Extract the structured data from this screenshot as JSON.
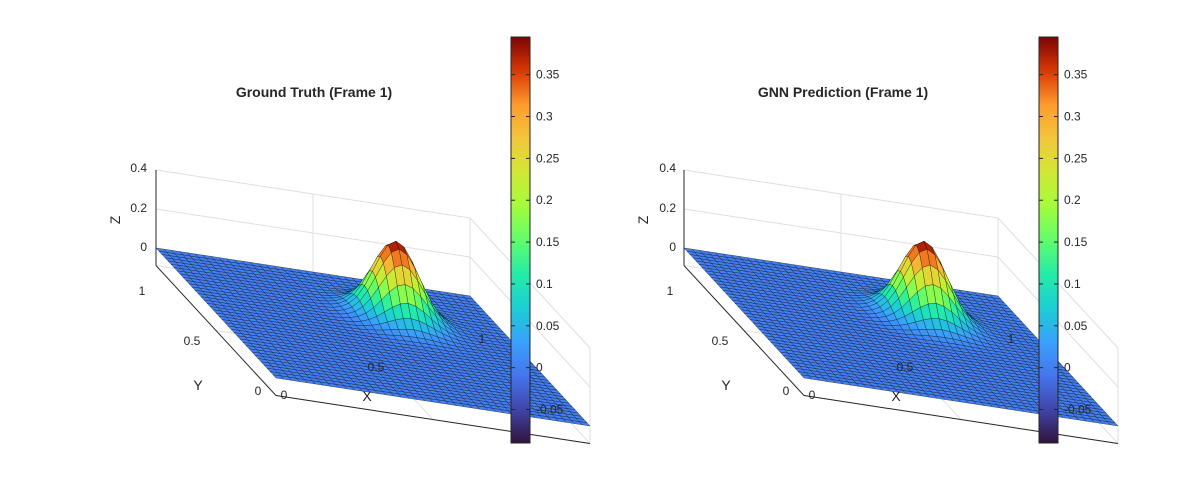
{
  "chart_data": [
    {
      "type": "surface",
      "title": "Ground Truth (Frame 1)",
      "xlabel": "X",
      "ylabel": "Y",
      "zlabel": "Z",
      "xlim": [
        0,
        1
      ],
      "ylim": [
        0,
        1
      ],
      "zlim": [
        -0.09,
        0.4
      ],
      "x_ticks": [
        "0",
        "0.5",
        "1"
      ],
      "y_ticks": [
        "0",
        "0.5",
        "1"
      ],
      "z_ticks": [
        "0",
        "0.2",
        "0.4"
      ],
      "grid": true,
      "colormap": "turbo",
      "grid_resolution": 40,
      "surface": {
        "function": "gaussian",
        "peak": 0.395,
        "center_x": 0.65,
        "center_y": 0.7,
        "sigma": 0.07,
        "baseline": 0
      },
      "colorbar": {
        "min": -0.09,
        "max": 0.395,
        "ticks": [
          "-0.05",
          "0",
          "0.05",
          "0.1",
          "0.15",
          "0.2",
          "0.25",
          "0.3",
          "0.35"
        ],
        "location": "right"
      }
    },
    {
      "type": "surface",
      "title": "GNN Prediction (Frame 1)",
      "xlabel": "X",
      "ylabel": "Y",
      "zlabel": "Z",
      "xlim": [
        0,
        1
      ],
      "ylim": [
        0,
        1
      ],
      "zlim": [
        -0.09,
        0.4
      ],
      "x_ticks": [
        "0",
        "0.5",
        "1"
      ],
      "y_ticks": [
        "0",
        "0.5",
        "1"
      ],
      "z_ticks": [
        "0",
        "0.2",
        "0.4"
      ],
      "grid": true,
      "colormap": "turbo",
      "grid_resolution": 40,
      "surface": {
        "function": "gaussian",
        "peak": 0.395,
        "center_x": 0.65,
        "center_y": 0.7,
        "sigma": 0.07,
        "baseline": 0
      },
      "colorbar": {
        "min": -0.09,
        "max": 0.395,
        "ticks": [
          "-0.05",
          "0",
          "0.05",
          "0.1",
          "0.15",
          "0.2",
          "0.25",
          "0.3",
          "0.35"
        ],
        "location": "right"
      }
    }
  ]
}
